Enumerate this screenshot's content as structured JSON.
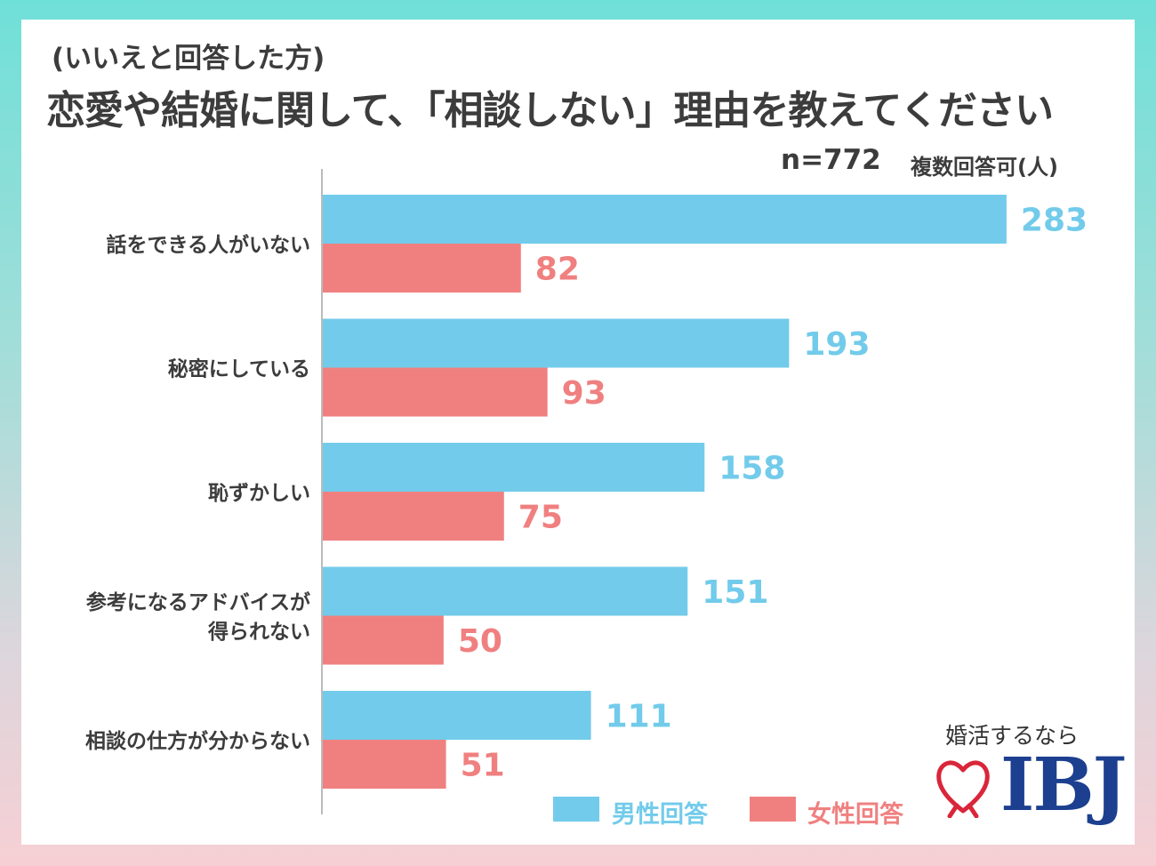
{
  "header": {
    "subtitle": "(いいえと回答した方)",
    "title": "恋愛や結婚に関して、「相談しない」理由を教えてください",
    "sample_size": "n=772",
    "unit_note": "複数回答可(人)"
  },
  "legend": {
    "male": "男性回答",
    "female": "女性回答"
  },
  "brand": {
    "tagline": "婚活するなら",
    "logo_text": "IBJ"
  },
  "colors": {
    "male": "#72cbea",
    "female": "#f08080",
    "text": "#3c3c3c",
    "axis": "#bbbbbb",
    "logo": "#1c3f8f",
    "heart": "#d9263a"
  },
  "chart_data": {
    "type": "bar",
    "orientation": "horizontal",
    "categories": [
      [
        "話をできる人がいない"
      ],
      [
        "秘密にしている"
      ],
      [
        "恥ずかしい"
      ],
      [
        "参考になるアドバイスが",
        "得られない"
      ],
      [
        "相談の仕方が分からない"
      ]
    ],
    "series": [
      {
        "name": "男性回答",
        "color": "#72cbea",
        "values": [
          283,
          193,
          158,
          151,
          111
        ]
      },
      {
        "name": "女性回答",
        "color": "#f08080",
        "values": [
          82,
          93,
          75,
          50,
          51
        ]
      }
    ],
    "xlim": [
      0,
      300
    ],
    "grid": false,
    "legend_position": "bottom-right"
  }
}
